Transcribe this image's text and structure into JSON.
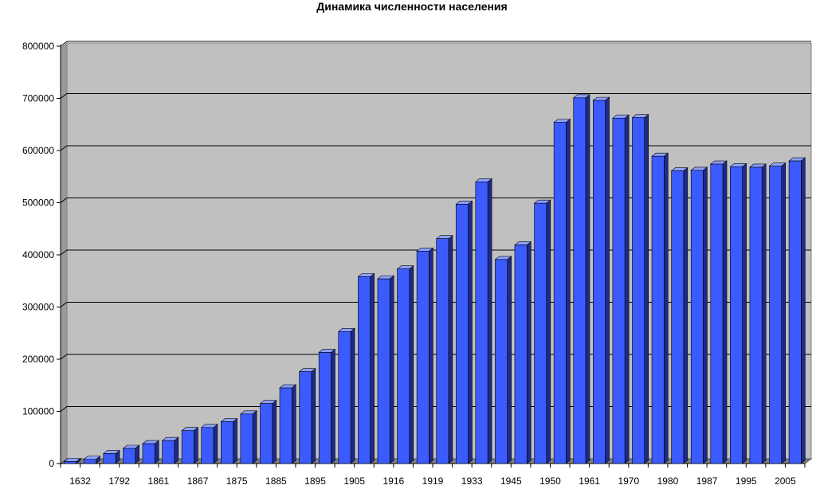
{
  "chart_data": {
    "type": "bar",
    "title": "Динамика численности населения",
    "xlabel": "",
    "ylabel": "",
    "ylim": [
      0,
      800000
    ],
    "yticks": [
      "0",
      "100000",
      "200000",
      "300000",
      "400000",
      "500000",
      "600000",
      "700000",
      "800000"
    ],
    "grid": true,
    "legend": "none",
    "colors": {
      "bar_front": "#3b5bff",
      "bar_side": "#1e2a8a",
      "bar_top": "#8ea0ff",
      "plot_back": "#c0c0c0",
      "plot_floor": "#808080"
    },
    "categories": [
      "1632",
      "",
      "1792",
      "",
      "1861",
      "",
      "1867",
      "",
      "1875",
      "",
      "1885",
      "",
      "1895",
      "",
      "1905",
      "",
      "1916",
      "",
      "1919",
      "",
      "1933",
      "",
      "1945",
      "",
      "1950",
      "",
      "1961",
      "",
      "1970",
      "",
      "1980",
      "",
      "1987",
      "",
      "1995",
      "",
      "2005",
      ""
    ],
    "values": [
      4000,
      8000,
      19000,
      29000,
      38000,
      44000,
      63000,
      69000,
      80000,
      95000,
      115000,
      145000,
      176000,
      213000,
      253000,
      358000,
      354000,
      373000,
      407000,
      431000,
      497000,
      540000,
      391000,
      419000,
      499000,
      654000,
      701000,
      696000,
      662000,
      663000,
      589000,
      561000,
      562000,
      574000,
      569000,
      568000,
      570000,
      580000
    ]
  }
}
